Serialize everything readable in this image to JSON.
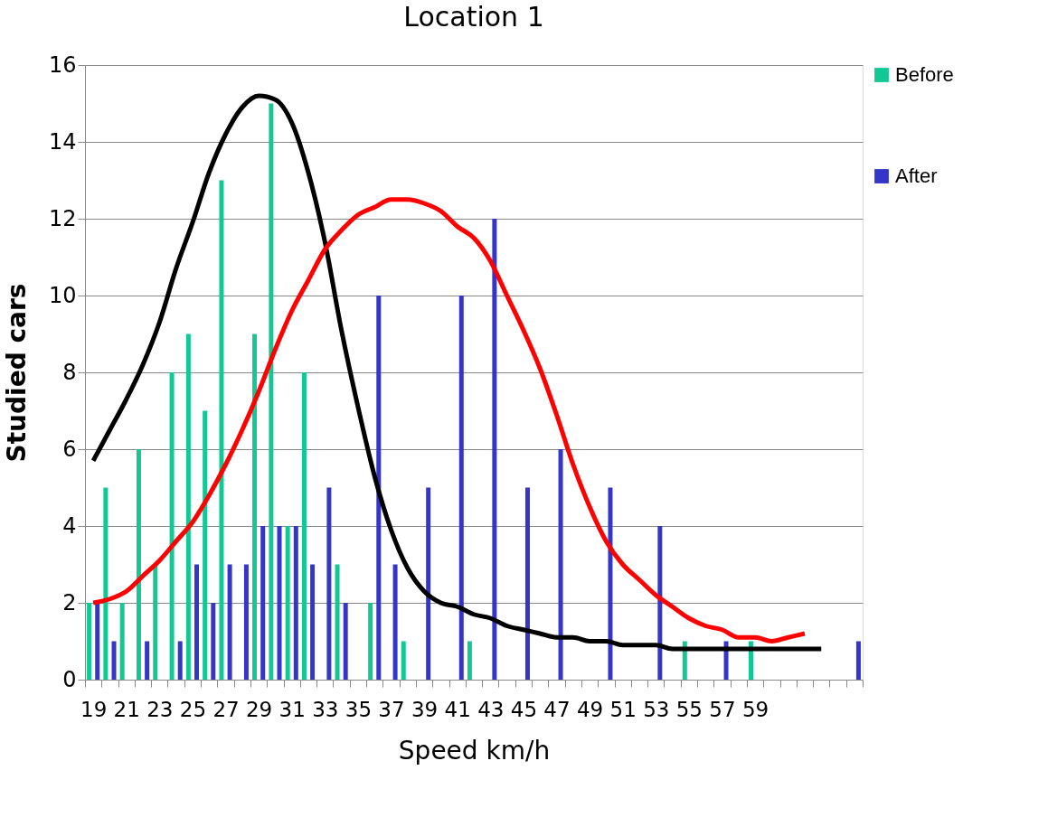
{
  "chart_data": {
    "type": "bar",
    "title": "Location 1",
    "xlabel": "Speed km/h",
    "ylabel": "Studied cars",
    "categories": [
      "19",
      null,
      "21",
      null,
      "23",
      null,
      "25",
      null,
      "27",
      null,
      "29",
      null,
      "31",
      null,
      "33",
      null,
      "35",
      null,
      "37",
      null,
      "39",
      null,
      "41",
      null,
      "43",
      null,
      "45",
      null,
      "47",
      null,
      "49",
      null,
      "51",
      null,
      "53",
      null,
      "55",
      null,
      "57",
      null,
      "59",
      null,
      null,
      null,
      null,
      null,
      null
    ],
    "series": [
      {
        "name": "Before",
        "type": "bar",
        "color": "#14c896",
        "values": [
          2,
          5,
          2,
          6,
          3,
          8,
          9,
          7,
          13,
          null,
          9,
          15,
          4,
          8,
          null,
          3,
          null,
          2,
          null,
          1,
          null,
          null,
          null,
          1,
          null,
          null,
          null,
          null,
          null,
          null,
          null,
          null,
          null,
          null,
          null,
          null,
          1,
          null,
          null,
          null,
          1,
          null,
          null,
          null,
          null,
          null,
          null
        ]
      },
      {
        "name": "After",
        "type": "bar",
        "color": "#3535c8",
        "values": [
          2,
          1,
          null,
          1,
          null,
          1,
          3,
          2,
          3,
          3,
          4,
          4,
          4,
          3,
          5,
          2,
          null,
          10,
          3,
          null,
          5,
          null,
          10,
          null,
          12,
          null,
          5,
          null,
          6,
          null,
          null,
          5,
          null,
          null,
          4,
          null,
          null,
          null,
          1,
          null,
          null,
          null,
          null,
          null,
          null,
          null,
          1
        ]
      },
      {
        "type": "line",
        "color": "#000000",
        "values": [
          5.7,
          6.5,
          7.3,
          8.2,
          9.3,
          10.7,
          11.9,
          13.2,
          14.2,
          14.9,
          15.2,
          15.1,
          14.5,
          13.2,
          11.4,
          9.1,
          7.1,
          5.3,
          3.9,
          2.9,
          2.3,
          2.0,
          1.9,
          1.7,
          1.6,
          1.4,
          1.3,
          1.2,
          1.1,
          1.1,
          1.0,
          1.0,
          0.9,
          0.9,
          0.9,
          0.8,
          0.8,
          0.8,
          0.8,
          0.8,
          0.8,
          0.8,
          0.8,
          0.8,
          0.8,
          null,
          null
        ]
      },
      {
        "type": "line",
        "color": "#ff0000",
        "values": [
          2.0,
          2.1,
          2.3,
          2.7,
          3.1,
          3.6,
          4.1,
          4.8,
          5.6,
          6.5,
          7.5,
          8.6,
          9.6,
          10.4,
          11.2,
          11.7,
          12.1,
          12.3,
          12.5,
          12.5,
          12.4,
          12.2,
          11.8,
          11.5,
          10.9,
          10.0,
          9.1,
          8.1,
          6.9,
          5.6,
          4.5,
          3.6,
          3.0,
          2.6,
          2.2,
          1.9,
          1.6,
          1.4,
          1.3,
          1.1,
          1.1,
          1.0,
          1.1,
          1.2,
          null,
          null,
          null
        ]
      }
    ],
    "ylim": [
      0,
      16
    ],
    "yticks": [
      0,
      2,
      4,
      6,
      8,
      10,
      12,
      14,
      16
    ],
    "grid": "y",
    "legend": "right",
    "line_style": "solid",
    "marker": "none"
  }
}
